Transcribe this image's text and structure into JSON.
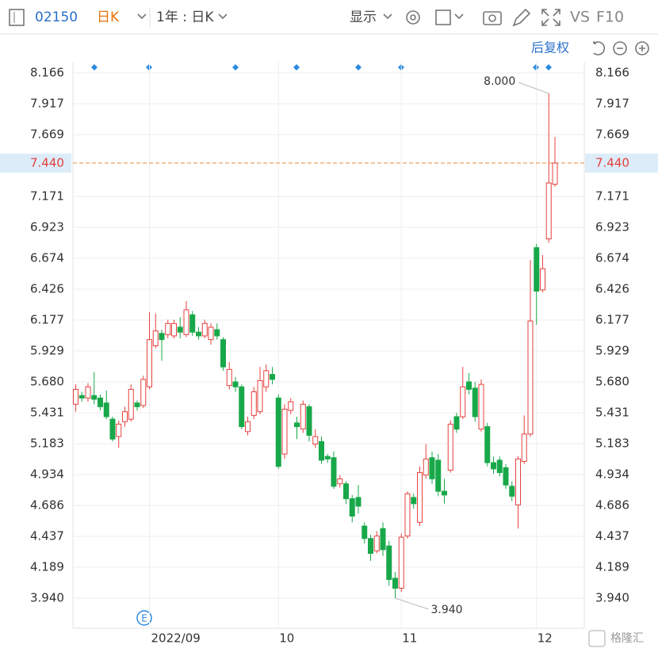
{
  "toolbar": {
    "code": "02150",
    "period": "日K",
    "range": "1年 : 日K",
    "display": "显示",
    "compare": "VS",
    "f10": "F10",
    "adjust": "后复权"
  },
  "watermark": "格隆汇",
  "chart_data": {
    "type": "candlestick",
    "categories": [
      null,
      null,
      null,
      null,
      null,
      null,
      null,
      null,
      null,
      null,
      null,
      null,
      "2022/09",
      null,
      null,
      null,
      null,
      null,
      null,
      null,
      null,
      null,
      null,
      null,
      null,
      null,
      null,
      null,
      null,
      null,
      null,
      null,
      null,
      "10",
      null,
      null,
      null,
      null,
      null,
      null,
      null,
      null,
      null,
      null,
      null,
      null,
      null,
      null,
      null,
      null,
      null,
      null,
      null,
      "11",
      null,
      null,
      null,
      null,
      null,
      null,
      null,
      null,
      null,
      null,
      null,
      null,
      null,
      null,
      null,
      null,
      null,
      null,
      null,
      null,
      null,
      "12",
      null,
      null,
      null
    ],
    "open": [
      5.5,
      5.57,
      5.55,
      5.57,
      5.55,
      5.51,
      5.38,
      5.24,
      5.36,
      5.38,
      5.51,
      5.49,
      5.64,
      5.97,
      6.07,
      6.06,
      6.05,
      6.12,
      6.06,
      6.22,
      6.08,
      6.05,
      6.02,
      6.1,
      6.02,
      5.65,
      5.68,
      5.64,
      5.28,
      5.41,
      5.44,
      5.64,
      5.74,
      5.55,
      5.1,
      5.45,
      5.35,
      5.3,
      5.48,
      5.18,
      5.2,
      5.08,
      5.07,
      4.86,
      4.86,
      4.74,
      4.75,
      4.52,
      4.42,
      4.32,
      4.5,
      4.36,
      4.1,
      4.02,
      4.44,
      4.75,
      4.55,
      4.93,
      5.07,
      5.05,
      4.8,
      4.97,
      5.4,
      5.4,
      5.68,
      5.63,
      5.3,
      5.32,
      5.03,
      5.05,
      4.99,
      4.84,
      4.69,
      5.04,
      5.26,
      6.76,
      6.42,
      6.83,
      7.27
    ],
    "high": [
      5.66,
      5.6,
      5.67,
      5.76,
      5.58,
      5.61,
      5.4,
      5.37,
      5.48,
      5.66,
      5.53,
      5.73,
      6.24,
      6.23,
      6.1,
      6.18,
      6.18,
      6.2,
      6.33,
      6.25,
      6.12,
      6.18,
      6.15,
      6.15,
      6.04,
      5.84,
      5.72,
      5.66,
      5.4,
      5.64,
      5.8,
      5.82,
      5.8,
      5.58,
      5.5,
      5.55,
      5.4,
      5.53,
      5.5,
      5.3,
      5.24,
      5.1,
      5.12,
      4.93,
      4.88,
      4.77,
      4.85,
      4.55,
      4.45,
      4.48,
      4.55,
      4.4,
      4.15,
      4.46,
      4.8,
      4.78,
      5.0,
      5.18,
      5.12,
      5.1,
      4.9,
      5.37,
      5.43,
      5.8,
      5.75,
      5.68,
      5.7,
      5.35,
      5.08,
      5.08,
      5.02,
      4.88,
      5.08,
      5.41,
      6.66,
      6.79,
      6.7,
      8.0,
      7.65
    ],
    "low": [
      5.44,
      5.52,
      5.52,
      5.5,
      5.45,
      5.38,
      5.2,
      5.15,
      5.32,
      5.36,
      5.45,
      5.47,
      5.62,
      5.95,
      5.85,
      6.03,
      6.03,
      6.03,
      6.04,
      6.05,
      6.02,
      6.03,
      5.98,
      6.02,
      5.77,
      5.62,
      5.6,
      5.3,
      5.25,
      5.38,
      5.42,
      5.6,
      5.66,
      4.98,
      5.06,
      5.42,
      5.22,
      5.27,
      5.2,
      5.15,
      5.02,
      5.03,
      4.82,
      4.83,
      4.7,
      4.55,
      4.62,
      4.38,
      4.24,
      4.3,
      4.28,
      4.04,
      3.94,
      3.99,
      4.42,
      4.66,
      4.52,
      4.9,
      4.86,
      4.76,
      4.7,
      4.95,
      5.27,
      5.38,
      5.58,
      5.36,
      5.28,
      5.0,
      4.94,
      4.92,
      4.82,
      4.72,
      4.5,
      5.02,
      5.24,
      6.14,
      6.4,
      6.8,
      7.25
    ],
    "close": [
      5.62,
      5.55,
      5.64,
      5.54,
      5.48,
      5.4,
      5.22,
      5.34,
      5.44,
      5.62,
      5.48,
      5.7,
      6.02,
      6.09,
      6.02,
      6.15,
      6.15,
      6.08,
      6.26,
      6.08,
      6.05,
      6.15,
      6.12,
      6.05,
      5.8,
      5.78,
      5.64,
      5.32,
      5.36,
      5.6,
      5.69,
      5.77,
      5.7,
      5.0,
      5.46,
      5.52,
      5.32,
      5.5,
      5.25,
      5.24,
      5.05,
      5.06,
      4.84,
      4.9,
      4.74,
      4.6,
      4.68,
      4.42,
      4.3,
      4.44,
      4.33,
      4.09,
      4.02,
      4.43,
      4.78,
      4.7,
      4.95,
      5.06,
      4.9,
      4.8,
      4.77,
      5.34,
      5.3,
      5.64,
      5.62,
      5.4,
      5.66,
      5.03,
      4.98,
      4.95,
      4.85,
      4.76,
      5.06,
      5.26,
      6.17,
      6.41,
      6.59,
      7.28,
      7.44
    ],
    "up_color": "#e5413d",
    "down_color": "#18a84a",
    "ylim": [
      3.698,
      8.255
    ],
    "yticks": [
      {
        "value": 3.94,
        "label": "3.940"
      },
      4.189,
      4.437,
      4.686,
      4.934,
      5.183,
      5.431,
      {
        "value": 5.68,
        "label": "5.680"
      },
      5.929,
      6.177,
      6.426,
      6.674,
      6.923,
      7.171,
      7.669,
      7.917,
      8.166
    ],
    "grid": true,
    "current": {
      "value": 7.44,
      "label": "7.440",
      "color": "#e8893a"
    },
    "annotations": {
      "high": "8.000",
      "low": "3.940"
    },
    "event_icon": "E"
  }
}
